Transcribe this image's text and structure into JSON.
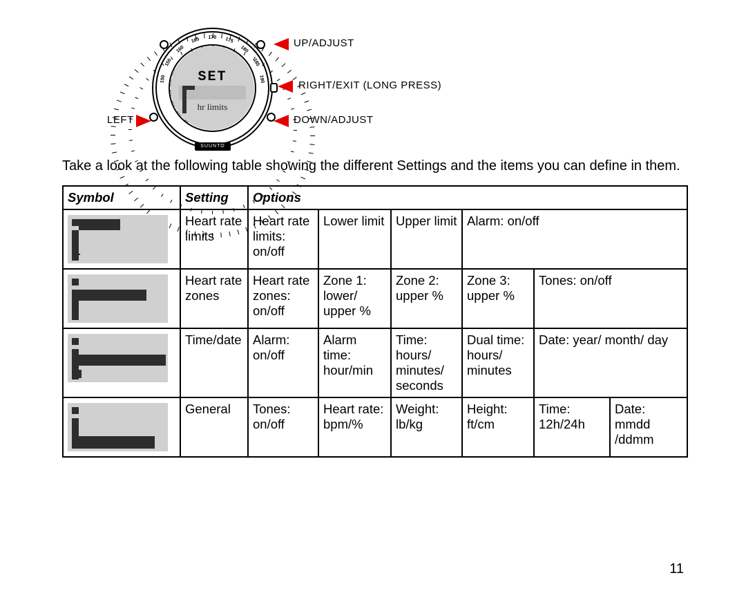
{
  "diagram": {
    "face_top": "SET",
    "face_bottom": "hr limits",
    "brand": "SUUNTO",
    "labels": {
      "up": "UP/ADJUST",
      "right": "RIGHT/EXIT (LONG PRESS)",
      "down": "DOWN/ADJUST",
      "left": "LEFT"
    },
    "arrow_color": "#e30000",
    "bezel_numbers_outer": [
      "150",
      "155",
      "160",
      "165",
      "170",
      "175",
      "180",
      "185",
      "190"
    ],
    "bezel_numbers_inner": [
      "60",
      "80",
      "100",
      "150",
      "200",
      "300",
      "500",
      "1000",
      "1500",
      "KCAL"
    ]
  },
  "intro": "Take a look at the following table showing the different Settings and the items you can define in them.",
  "table": {
    "headers": {
      "symbol": "Symbol",
      "setting": "Setting",
      "options": "Options"
    },
    "rows": [
      {
        "symbol": "hr-limits",
        "setting": "Heart rate limits",
        "cells": [
          "Heart rate limits: on/off",
          "Lower limit",
          "Upper limit",
          "Alarm: on/off",
          "",
          ""
        ]
      },
      {
        "symbol": "hr-zones",
        "setting": "Heart rate zones",
        "cells": [
          "Heart rate zones: on/off",
          "Zone 1: lower/ upper %",
          "Zone 2: upper %",
          "Zone 3: upper %",
          "Tones: on/off",
          ""
        ]
      },
      {
        "symbol": "time-date",
        "setting": "Time/date",
        "cells": [
          "Alarm: on/off",
          "Alarm time: hour/min",
          "Time: hours/ minutes/ seconds",
          "Dual time: hours/ minutes",
          "Date: year/ month/ day",
          ""
        ]
      },
      {
        "symbol": "general",
        "setting": "General",
        "cells": [
          "Tones: on/off",
          "Heart rate: bpm/%",
          "Weight: lb/kg",
          "Height: ft/cm",
          "Time: 12h/24h",
          "Date: mmdd /ddmm"
        ]
      }
    ]
  },
  "page_number": "11"
}
